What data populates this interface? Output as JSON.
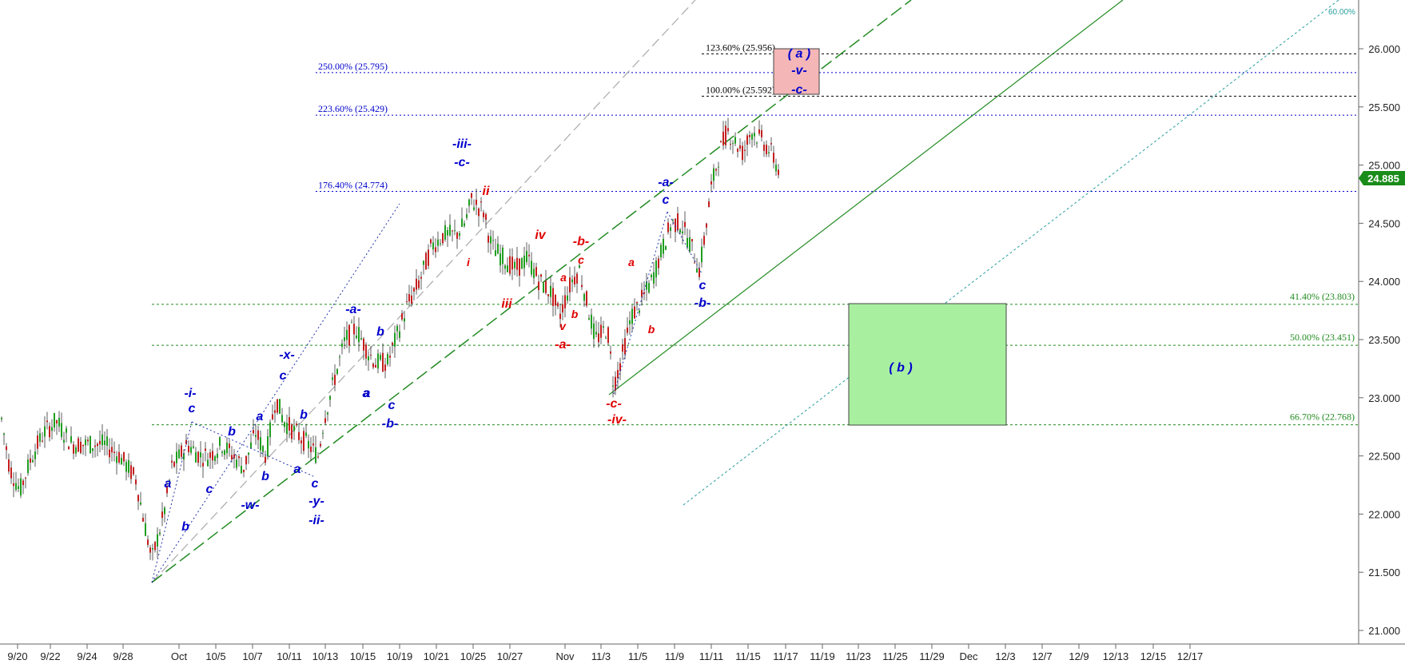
{
  "chart_data": {
    "type": "candlestick",
    "y_axis": {
      "min": 20.8,
      "max": 26.5,
      "ticks": [
        "21.000",
        "21.500",
        "22.000",
        "22.500",
        "23.000",
        "23.500",
        "24.000",
        "24.500",
        "25.000",
        "25.500",
        "26.000"
      ]
    },
    "x_axis": {
      "tick_labels": [
        "9/20",
        "9/22",
        "9/24",
        "9/28",
        "Oct",
        "10/5",
        "10/7",
        "10/11",
        "10/13",
        "10/15",
        "10/19",
        "10/21",
        "10/25",
        "10/27",
        "Nov",
        "11/3",
        "11/5",
        "11/9",
        "11/11",
        "11/15",
        "11/17",
        "11/19",
        "11/23",
        "11/25",
        "11/29",
        "Dec",
        "12/3",
        "12/7",
        "12/9",
        "12/13",
        "12/15",
        "12/17"
      ]
    },
    "last_price": "24.885",
    "series": [
      {
        "x": [
          "9/20",
          "9/24",
          "9/28",
          "Oct",
          "10/5",
          "10/7",
          "10/11",
          "10/13",
          "10/15",
          "10/19",
          "10/21",
          "10/25",
          "10/27",
          "Nov",
          "11/3",
          "11/5",
          "11/9",
          "11/11",
          "11/15",
          "11/17"
        ],
        "close": [
          22.5,
          22.7,
          22.6,
          22.1,
          22.4,
          22.6,
          23.1,
          22.7,
          23.5,
          23.6,
          24.3,
          24.6,
          24.1,
          24.0,
          23.2,
          24.1,
          24.4,
          25.1,
          25.2,
          24.885
        ]
      }
    ],
    "fib_levels": [
      {
        "label": "123.60% (25.956)",
        "value": 25.956,
        "color": "#000000"
      },
      {
        "label": "250.00% (25.795)",
        "value": 25.795,
        "color": "#0000cc"
      },
      {
        "label": "100.00% (25.592)",
        "value": 25.592,
        "color": "#000000"
      },
      {
        "label": "223.60% (25.429)",
        "value": 25.429,
        "color": "#0000cc"
      },
      {
        "label": "176.40% (24.774)",
        "value": 24.774,
        "color": "#0000cc"
      },
      {
        "label": "41.40% (23.803)",
        "value": 23.803,
        "color": "#228b22"
      },
      {
        "label": "50.00% (23.451)",
        "value": 23.451,
        "color": "#228b22"
      },
      {
        "label": "66.70% (22.768)",
        "value": 22.768,
        "color": "#228b22"
      }
    ],
    "channel_label": "60.00%",
    "zones": [
      {
        "label": "( a )",
        "color": "#f4b6b6"
      },
      {
        "label": "( b )",
        "color": "#a8f0a0"
      }
    ],
    "wave_labels_blue": [
      "-i-",
      "c",
      "a",
      "b",
      "c",
      "-w-",
      "b",
      "a",
      "b",
      "a",
      "-x-",
      "c",
      "b",
      "a",
      "c",
      "-y-",
      "-ii-",
      "-a-",
      "b",
      "a",
      "c",
      "-b-",
      "-iii-",
      "-c-",
      "-a-",
      "c",
      "c",
      "-b-",
      "-v-",
      "-c-"
    ],
    "wave_labels_red": [
      "ii",
      "i",
      "iii",
      "iv",
      "-b-",
      "c",
      "a",
      "b",
      "v",
      "-a-",
      "a",
      "b",
      "-c-",
      "-iv-"
    ]
  },
  "colors": {
    "blue": "#0000cc",
    "red": "#e00000",
    "green": "#228b22",
    "price_badge": "#1a8c1a"
  }
}
